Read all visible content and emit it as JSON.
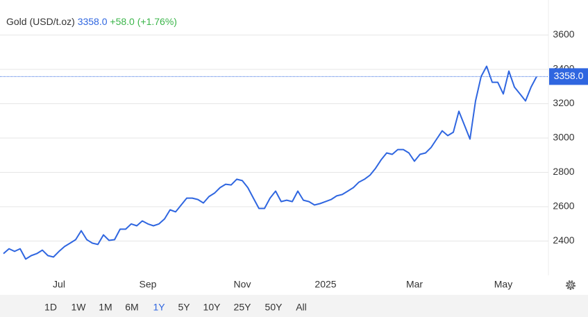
{
  "chart_data": {
    "type": "line",
    "title": "Gold (USD/t.oz)",
    "price": "3358.0",
    "change": "+58.0 (+1.76%)",
    "categories": [
      null,
      null,
      null,
      null,
      null,
      null,
      null,
      null,
      null,
      null,
      "Jul",
      null,
      null,
      null,
      null,
      null,
      null,
      null,
      null,
      null,
      null,
      null,
      null,
      null,
      null,
      null,
      "Sep",
      null,
      null,
      null,
      null,
      null,
      null,
      null,
      null,
      null,
      null,
      null,
      null,
      null,
      null,
      null,
      null,
      "Nov",
      null,
      null,
      null,
      null,
      null,
      null,
      null,
      null,
      null,
      null,
      null,
      null,
      null,
      null,
      "2025",
      null,
      null,
      null,
      null,
      null,
      null,
      null,
      null,
      null,
      null,
      null,
      null,
      null,
      null,
      null,
      "Mar",
      null,
      null,
      null,
      null,
      null,
      null,
      null,
      null,
      null,
      null,
      null,
      null,
      null,
      null,
      null,
      "May",
      null,
      null,
      null,
      null,
      null,
      null
    ],
    "values": [
      2327,
      2355,
      2340,
      2355,
      2295,
      2315,
      2327,
      2347,
      2315,
      2307,
      2340,
      2368,
      2388,
      2408,
      2460,
      2408,
      2388,
      2380,
      2436,
      2404,
      2408,
      2469,
      2469,
      2500,
      2489,
      2517,
      2500,
      2489,
      2500,
      2529,
      2582,
      2570,
      2610,
      2650,
      2650,
      2642,
      2622,
      2659,
      2679,
      2711,
      2731,
      2727,
      2760,
      2752,
      2711,
      2650,
      2590,
      2590,
      2650,
      2691,
      2630,
      2638,
      2630,
      2691,
      2638,
      2630,
      2610,
      2618,
      2630,
      2642,
      2663,
      2671,
      2691,
      2711,
      2743,
      2760,
      2784,
      2824,
      2873,
      2913,
      2905,
      2933,
      2933,
      2913,
      2865,
      2905,
      2913,
      2945,
      2994,
      3042,
      3014,
      3034,
      3156,
      3075,
      2994,
      3216,
      3358,
      3418,
      3325,
      3325,
      3257,
      3390,
      3297,
      3257,
      3216,
      3297,
      3358
    ],
    "color": "#2f66e0",
    "price_line": {
      "value": 3358,
      "label": "3358.0"
    },
    "ylim": [
      2200,
      3800
    ],
    "yticks": [
      2400,
      2600,
      2800,
      3000,
      3200,
      3400,
      3600
    ],
    "grid": true,
    "range_buttons": [
      "1D",
      "1W",
      "1M",
      "6M",
      "1Y",
      "5Y",
      "10Y",
      "25Y",
      "50Y",
      "All"
    ],
    "selected_range": "1Y"
  }
}
